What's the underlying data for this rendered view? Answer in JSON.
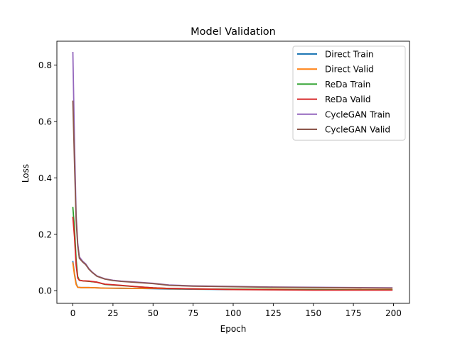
{
  "chart_data": {
    "type": "line",
    "title": "Model Validation",
    "xlabel": "Epoch",
    "ylabel": "Loss",
    "xlim": [
      -10,
      210
    ],
    "ylim": [
      -0.045,
      0.885
    ],
    "xticks": [
      0,
      25,
      50,
      75,
      100,
      125,
      150,
      175,
      200
    ],
    "yticks": [
      0.0,
      0.2,
      0.4,
      0.6,
      0.8
    ],
    "ytick_labels": [
      "0.0",
      "0.2",
      "0.4",
      "0.6",
      "0.8"
    ],
    "grid": false,
    "legend_position": "top-right",
    "series": [
      {
        "name": "Direct Train",
        "color": "#1f77b4",
        "x": [
          0,
          1,
          2,
          3,
          5,
          10,
          15,
          20,
          30,
          40,
          50,
          60,
          80,
          100,
          125,
          150,
          175,
          199
        ],
        "y": [
          0.103,
          0.06,
          0.025,
          0.012,
          0.011,
          0.011,
          0.01,
          0.009,
          0.008,
          0.008,
          0.007,
          0.006,
          0.005,
          0.004,
          0.004,
          0.003,
          0.003,
          0.003
        ]
      },
      {
        "name": "Direct Valid",
        "color": "#ff7f0e",
        "x": [
          0,
          1,
          2,
          3,
          5,
          10,
          15,
          20,
          30,
          40,
          50,
          60,
          80,
          100,
          125,
          150,
          175,
          199
        ],
        "y": [
          0.098,
          0.055,
          0.022,
          0.012,
          0.011,
          0.011,
          0.01,
          0.009,
          0.009,
          0.008,
          0.008,
          0.007,
          0.006,
          0.005,
          0.005,
          0.004,
          0.004,
          0.004
        ]
      },
      {
        "name": "ReDa Train",
        "color": "#2ca02c",
        "x": [
          0,
          1,
          2,
          3,
          4,
          6,
          10,
          15,
          20,
          30,
          40,
          50,
          60,
          80,
          100,
          125,
          150,
          175,
          199
        ],
        "y": [
          0.295,
          0.22,
          0.11,
          0.05,
          0.037,
          0.035,
          0.033,
          0.03,
          0.022,
          0.018,
          0.014,
          0.01,
          0.008,
          0.006,
          0.005,
          0.004,
          0.004,
          0.003,
          0.003
        ]
      },
      {
        "name": "ReDa Valid",
        "color": "#d62728",
        "x": [
          0,
          1,
          2,
          3,
          4,
          6,
          10,
          15,
          20,
          30,
          40,
          50,
          60,
          80,
          100,
          125,
          150,
          175,
          199
        ],
        "y": [
          0.26,
          0.19,
          0.09,
          0.045,
          0.037,
          0.035,
          0.034,
          0.03,
          0.023,
          0.019,
          0.014,
          0.01,
          0.008,
          0.006,
          0.004,
          0.003,
          0.002,
          0.002,
          0.002
        ]
      },
      {
        "name": "CycleGAN Train",
        "color": "#9467bd",
        "x": [
          0,
          1,
          2,
          3,
          4,
          6,
          8,
          10,
          12,
          15,
          20,
          25,
          30,
          40,
          50,
          60,
          75,
          100,
          125,
          150,
          175,
          199
        ],
        "y": [
          0.845,
          0.52,
          0.27,
          0.17,
          0.12,
          0.105,
          0.095,
          0.078,
          0.066,
          0.052,
          0.042,
          0.037,
          0.034,
          0.03,
          0.026,
          0.02,
          0.017,
          0.015,
          0.013,
          0.012,
          0.011,
          0.01
        ]
      },
      {
        "name": "CycleGAN Valid",
        "color": "#8c564b",
        "x": [
          0,
          1,
          2,
          3,
          4,
          6,
          8,
          10,
          12,
          15,
          20,
          25,
          30,
          40,
          50,
          60,
          75,
          100,
          125,
          150,
          175,
          199
        ],
        "y": [
          0.672,
          0.45,
          0.25,
          0.16,
          0.115,
          0.102,
          0.092,
          0.076,
          0.065,
          0.051,
          0.041,
          0.036,
          0.033,
          0.029,
          0.025,
          0.019,
          0.016,
          0.014,
          0.012,
          0.011,
          0.01,
          0.009
        ]
      }
    ]
  }
}
